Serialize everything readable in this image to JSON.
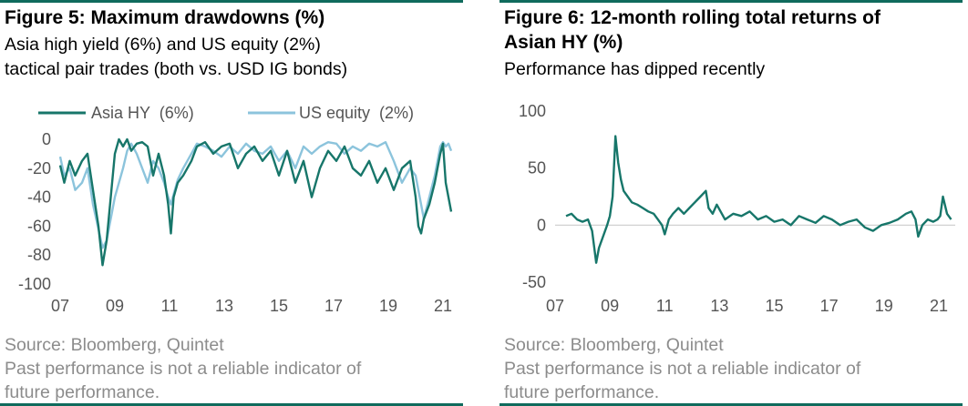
{
  "colors": {
    "accent": "#0f6b5d",
    "asia_hy": "#17766a",
    "us_equity": "#8cc4dc",
    "footer_text": "#8c8c8c"
  },
  "figure5": {
    "title": "Figure 5: Maximum drawdowns (%)",
    "subtitle_line1": "Asia high yield (6%) and US equity (2%)",
    "subtitle_line2": "tactical pair trades (both vs. USD IG bonds)",
    "footer_line1": "Source: Bloomberg, Quintet",
    "footer_line2": "Past performance is not a reliable indicator of",
    "footer_line3": "future performance."
  },
  "figure6": {
    "title_line1": "Figure 6: 12-month rolling total returns of",
    "title_line2": "Asian HY (%)",
    "subtitle": "Performance has dipped recently",
    "footer_line1": "Source: Bloomberg, Quintet",
    "footer_line2": "Past performance is not a reliable indicator of",
    "footer_line3": "future performance."
  },
  "chart_data": [
    {
      "type": "line",
      "xlim": [
        2007,
        2021.6
      ],
      "ylim": [
        -100,
        0
      ],
      "x_ticks": [
        2007,
        2009,
        2011,
        2013,
        2015,
        2017,
        2019,
        2021
      ],
      "x_tick_labels": [
        "07",
        "09",
        "11",
        "13",
        "15",
        "17",
        "19",
        "21"
      ],
      "y_ticks": [
        0,
        -20,
        -40,
        -60,
        -80,
        -100
      ],
      "y_tick_labels": [
        "0",
        "-20",
        "-40",
        "-60",
        "-80",
        "-100"
      ],
      "legend_position": "top",
      "grid": false,
      "series": [
        {
          "name": "Asia HY  (6%)",
          "x": [
            2007.0,
            2007.15,
            2007.35,
            2007.55,
            2007.8,
            2008.0,
            2008.2,
            2008.4,
            2008.55,
            2008.7,
            2008.85,
            2009.0,
            2009.15,
            2009.3,
            2009.45,
            2009.6,
            2009.8,
            2010.0,
            2010.2,
            2010.4,
            2010.6,
            2010.8,
            2010.95,
            2011.05,
            2011.15,
            2011.3,
            2011.5,
            2011.8,
            2012.0,
            2012.3,
            2012.6,
            2012.9,
            2013.2,
            2013.5,
            2013.8,
            2014.1,
            2014.4,
            2014.7,
            2015.0,
            2015.3,
            2015.6,
            2015.9,
            2016.2,
            2016.5,
            2016.8,
            2017.1,
            2017.4,
            2017.7,
            2018.0,
            2018.3,
            2018.6,
            2018.9,
            2019.2,
            2019.5,
            2019.8,
            2020.0,
            2020.1,
            2020.2,
            2020.3,
            2020.5,
            2020.7,
            2020.9,
            2021.0,
            2021.1,
            2021.2,
            2021.3
          ],
          "values": [
            -18,
            -30,
            -15,
            -25,
            -15,
            -10,
            -35,
            -60,
            -87,
            -70,
            -40,
            -10,
            0,
            -5,
            0,
            -8,
            -3,
            -2,
            -5,
            -25,
            -10,
            -25,
            -45,
            -65,
            -40,
            -30,
            -25,
            -15,
            -5,
            -2,
            -10,
            -5,
            -3,
            -20,
            -10,
            -5,
            -15,
            -8,
            -25,
            -8,
            -30,
            -15,
            -40,
            -20,
            -8,
            -15,
            -5,
            -20,
            -25,
            -15,
            -30,
            -20,
            -35,
            -20,
            -15,
            -40,
            -60,
            -65,
            -55,
            -45,
            -30,
            -10,
            -3,
            -30,
            -40,
            -50
          ]
        },
        {
          "name": "US equity  (2%)",
          "x": [
            2007.0,
            2007.15,
            2007.35,
            2007.55,
            2007.8,
            2008.0,
            2008.2,
            2008.4,
            2008.55,
            2008.7,
            2008.85,
            2009.0,
            2009.15,
            2009.3,
            2009.45,
            2009.6,
            2009.8,
            2010.0,
            2010.2,
            2010.4,
            2010.6,
            2010.8,
            2010.95,
            2011.05,
            2011.15,
            2011.3,
            2011.5,
            2011.8,
            2012.0,
            2012.3,
            2012.6,
            2012.9,
            2013.2,
            2013.5,
            2013.8,
            2014.1,
            2014.4,
            2014.7,
            2015.0,
            2015.3,
            2015.6,
            2015.9,
            2016.2,
            2016.5,
            2016.8,
            2017.1,
            2017.4,
            2017.7,
            2018.0,
            2018.3,
            2018.6,
            2018.9,
            2019.2,
            2019.5,
            2019.8,
            2020.0,
            2020.1,
            2020.2,
            2020.3,
            2020.5,
            2020.7,
            2020.9,
            2021.0,
            2021.1,
            2021.2,
            2021.3
          ],
          "values": [
            -12,
            -25,
            -20,
            -35,
            -30,
            -20,
            -45,
            -62,
            -75,
            -70,
            -55,
            -40,
            -30,
            -20,
            -8,
            -3,
            -10,
            -20,
            -30,
            -15,
            -20,
            -30,
            -40,
            -45,
            -38,
            -28,
            -20,
            -10,
            -3,
            -5,
            -8,
            -12,
            -5,
            -10,
            -3,
            -8,
            -10,
            -5,
            -15,
            -8,
            -20,
            -5,
            -10,
            -5,
            -2,
            -3,
            -10,
            -5,
            -8,
            -3,
            -5,
            -2,
            -15,
            -30,
            -20,
            -25,
            -35,
            -45,
            -55,
            -40,
            -25,
            -5,
            -2,
            -5,
            -3,
            -8
          ]
        }
      ]
    },
    {
      "type": "line",
      "xlim": [
        2007,
        2021.6
      ],
      "ylim": [
        -50,
        100
      ],
      "x_ticks": [
        2007,
        2009,
        2011,
        2013,
        2015,
        2017,
        2019,
        2021
      ],
      "x_tick_labels": [
        "07",
        "09",
        "11",
        "13",
        "15",
        "17",
        "19",
        "21"
      ],
      "y_ticks": [
        100,
        50,
        0,
        -50
      ],
      "y_tick_labels": [
        "100",
        "50",
        "0",
        "-50"
      ],
      "zero_line": true,
      "grid": false,
      "series": [
        {
          "x": [
            2007.4,
            2007.6,
            2007.8,
            2008.0,
            2008.2,
            2008.35,
            2008.5,
            2008.6,
            2008.75,
            2008.9,
            2009.0,
            2009.1,
            2009.2,
            2009.3,
            2009.4,
            2009.5,
            2009.65,
            2009.8,
            2010.0,
            2010.2,
            2010.4,
            2010.6,
            2010.75,
            2010.9,
            2011.0,
            2011.15,
            2011.3,
            2011.5,
            2011.7,
            2011.9,
            2012.1,
            2012.3,
            2012.5,
            2012.6,
            2012.75,
            2012.9,
            2013.2,
            2013.5,
            2013.8,
            2014.1,
            2014.4,
            2014.7,
            2015.0,
            2015.3,
            2015.6,
            2015.9,
            2016.2,
            2016.5,
            2016.8,
            2017.1,
            2017.4,
            2017.7,
            2018.0,
            2018.3,
            2018.6,
            2018.9,
            2019.2,
            2019.5,
            2019.8,
            2020.0,
            2020.15,
            2020.25,
            2020.4,
            2020.6,
            2020.8,
            2020.95,
            2021.05,
            2021.15,
            2021.3,
            2021.45
          ],
          "values": [
            8,
            10,
            5,
            3,
            5,
            -5,
            -33,
            -20,
            -10,
            0,
            8,
            25,
            78,
            55,
            40,
            30,
            25,
            20,
            18,
            15,
            12,
            10,
            5,
            0,
            -8,
            5,
            10,
            15,
            10,
            15,
            20,
            25,
            30,
            15,
            10,
            18,
            5,
            10,
            8,
            12,
            5,
            8,
            3,
            5,
            0,
            8,
            5,
            2,
            8,
            5,
            0,
            3,
            5,
            -2,
            -5,
            0,
            2,
            5,
            10,
            12,
            5,
            -10,
            0,
            5,
            3,
            5,
            8,
            25,
            10,
            5
          ]
        }
      ]
    }
  ]
}
